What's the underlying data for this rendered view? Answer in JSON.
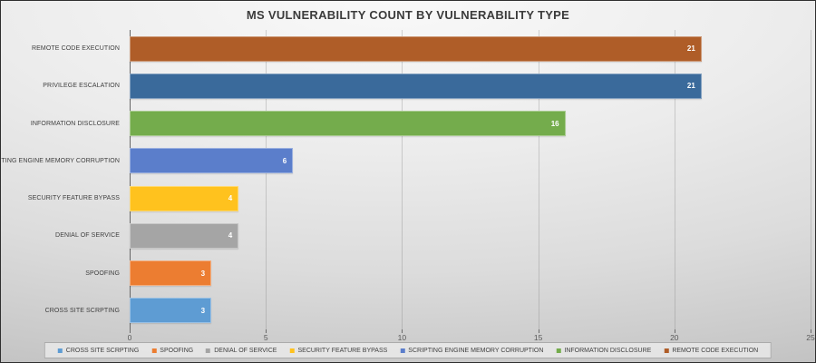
{
  "chart_data": {
    "type": "bar",
    "orientation": "horizontal",
    "title": "MS VULNERABILITY COUNT BY VULNERABILITY TYPE",
    "categories": [
      "REMOTE CODE EXECUTION",
      "PRIVILEGE ESCALATION",
      "INFORMATION DISCLOSURE",
      "SCRIPTING ENGINE MEMORY CORRUPTION",
      "SECURITY FEATURE BYPASS",
      "DENIAL OF SERVICE",
      "SPOOFING",
      "CROSS SITE SCRPTING"
    ],
    "values": [
      21,
      21,
      16,
      6,
      4,
      4,
      3,
      3
    ],
    "data_labels": [
      "21",
      "21",
      "16",
      "6",
      "4",
      "4",
      "3",
      "3"
    ],
    "colors": [
      "#AF5D28",
      "#3A6A9B",
      "#74AC4C",
      "#5B7ECB",
      "#FFC21E",
      "#A5A5A5",
      "#EC7D31",
      "#5E9CD3"
    ],
    "xlim": [
      0,
      25
    ],
    "x_ticks": [
      "0",
      "5",
      "10",
      "15",
      "20",
      "25"
    ],
    "grid": "vertical",
    "legend_position": "bottom",
    "legend": [
      {
        "label": "CROSS SITE SCRPTING",
        "color": "#5E9CD3"
      },
      {
        "label": "SPOOFING",
        "color": "#EC7D31"
      },
      {
        "label": "DENIAL OF SERVICE",
        "color": "#A5A5A5"
      },
      {
        "label": "SECURITY FEATURE BYPASS",
        "color": "#FFC21E"
      },
      {
        "label": "SCRIPTING ENGINE MEMORY CORRUPTION",
        "color": "#5B7ECB"
      },
      {
        "label": "INFORMATION DISCLOSURE",
        "color": "#74AC4C"
      },
      {
        "label": "REMOTE CODE EXECUTION",
        "color": "#AF5D28"
      }
    ]
  }
}
